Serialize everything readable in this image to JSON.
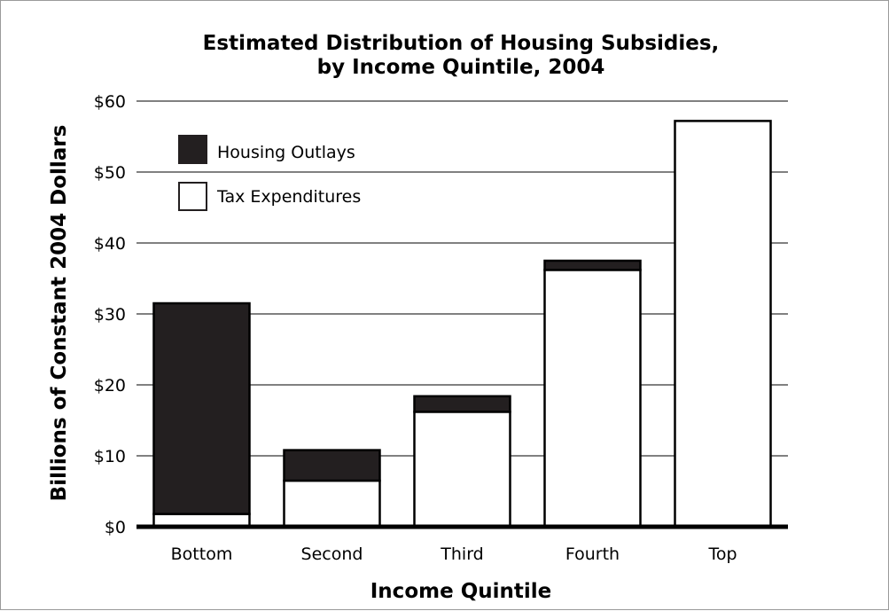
{
  "chart_data": {
    "type": "bar",
    "stacked": true,
    "title": "Estimated Distribution of Housing Subsidies,",
    "subtitle": "by Income Quintile, 2004",
    "xlabel": "Income Quintile",
    "ylabel": "Billions of Constant 2004 Dollars",
    "categories": [
      "Bottom",
      "Second",
      "Third",
      "Fourth",
      "Top"
    ],
    "y_ticks": [
      "$0",
      "$10",
      "$20",
      "$30",
      "$40",
      "$50",
      "$60"
    ],
    "ylim": [
      0,
      60
    ],
    "grid": true,
    "legend_position": "top-left",
    "series": [
      {
        "name": "Tax Expenditures",
        "color": "#ffffff",
        "values": [
          1.8,
          6.5,
          16.2,
          36.2,
          57.2
        ]
      },
      {
        "name": "Housing Outlays",
        "color": "#231f20",
        "values": [
          29.7,
          4.3,
          2.2,
          1.3,
          0
        ]
      }
    ]
  }
}
